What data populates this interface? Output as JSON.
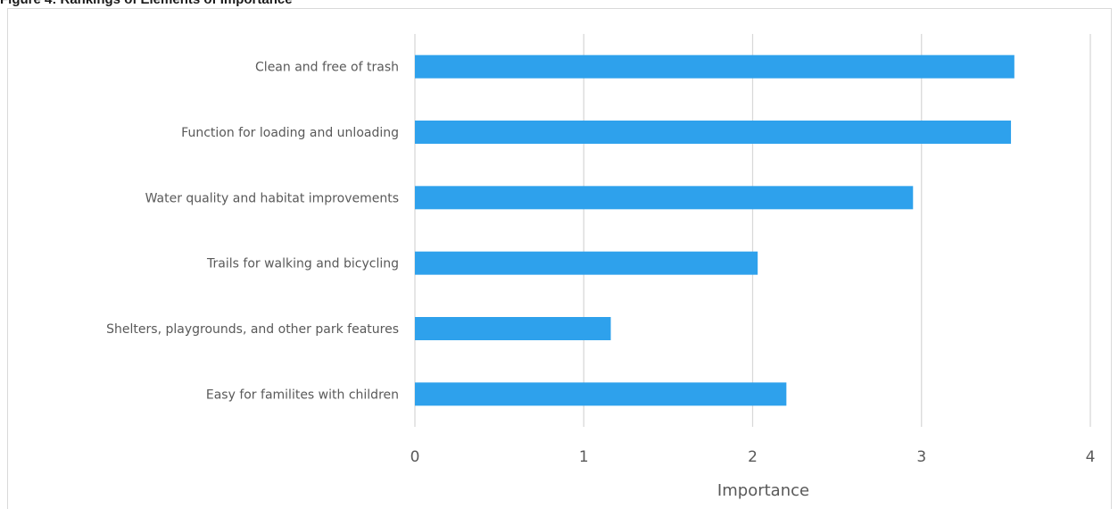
{
  "heading": "Figure 4: Rankings of Elements of Importance",
  "chart_data": {
    "type": "bar",
    "orientation": "horizontal",
    "title": "",
    "xlabel": "Importance",
    "ylabel": "",
    "xlim": [
      0,
      4
    ],
    "x_ticks": [
      "0",
      "1",
      "2",
      "3",
      "4"
    ],
    "grid": "vertical",
    "legend": "none",
    "categories": [
      "Clean and free of trash",
      "Function for loading and unloading",
      "Water quality and habitat improvements",
      "Trails for walking and bicycling",
      "Shelters, playgrounds, and other park features",
      "Easy for familites with children"
    ],
    "values": [
      3.55,
      3.53,
      2.95,
      2.03,
      1.16,
      2.2
    ],
    "bar_color": "#2ea1ec",
    "grid_color": "#d9d9d9"
  }
}
